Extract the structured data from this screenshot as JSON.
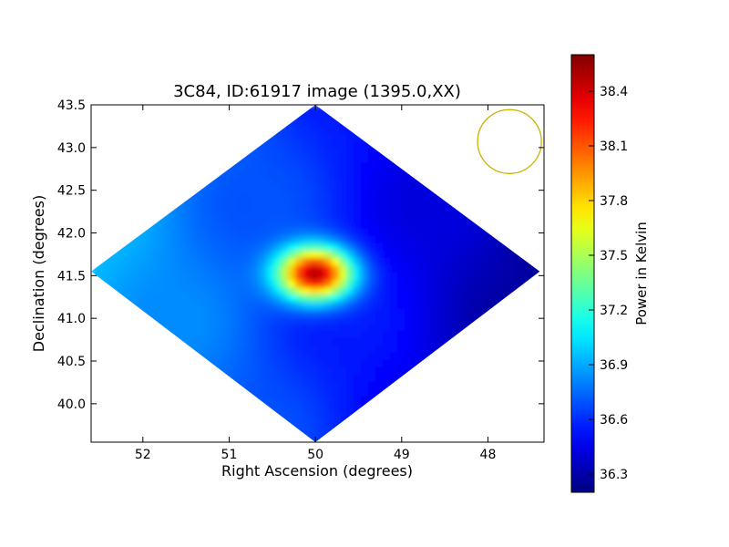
{
  "chart_data": {
    "type": "heatmap",
    "title": "3C84, ID:61917 image (1395.0,XX)",
    "xlabel": "Right Ascension (degrees)",
    "ylabel": "Declination (degrees)",
    "xlim": [
      52.6,
      47.35
    ],
    "ylim": [
      39.55,
      43.5
    ],
    "x_reversed": true,
    "x_ticks": [
      52,
      51,
      50,
      49,
      48
    ],
    "x_tick_labels": [
      "52",
      "51",
      "50",
      "49",
      "48"
    ],
    "y_ticks": [
      40.0,
      40.5,
      41.0,
      41.5,
      42.0,
      42.5,
      43.0,
      43.5
    ],
    "y_tick_labels": [
      "40.0",
      "40.5",
      "41.0",
      "41.5",
      "42.0",
      "42.5",
      "43.0",
      "43.5"
    ],
    "colormap": "jet",
    "colorbar": {
      "label": "Power in Kelvin",
      "range": [
        36.2,
        38.6
      ],
      "ticks": [
        36.3,
        36.6,
        36.9,
        37.2,
        37.5,
        37.8,
        38.1,
        38.4
      ],
      "tick_labels": [
        "36.3",
        "36.6",
        "36.9",
        "37.2",
        "37.5",
        "37.8",
        "38.1",
        "38.4"
      ]
    },
    "coverage_region": {
      "shape": "diamond",
      "vertices_ra_dec": [
        [
          50.0,
          43.5
        ],
        [
          52.6,
          41.55
        ],
        [
          50.0,
          39.55
        ],
        [
          47.4,
          41.55
        ]
      ]
    },
    "background_level_kelvin": 36.7,
    "gradient": {
      "east_edge_kelvin": 36.95,
      "west_edge_kelvin": 36.25
    },
    "source": {
      "ra": 50.0,
      "dec": 41.52,
      "peak_kelvin": 38.6,
      "width_ra": 0.42,
      "width_dec": 0.3
    },
    "beam": {
      "ra": 47.75,
      "dec": 43.07,
      "radius_deg": 0.37,
      "color": "#c8b400"
    },
    "grid": false
  }
}
